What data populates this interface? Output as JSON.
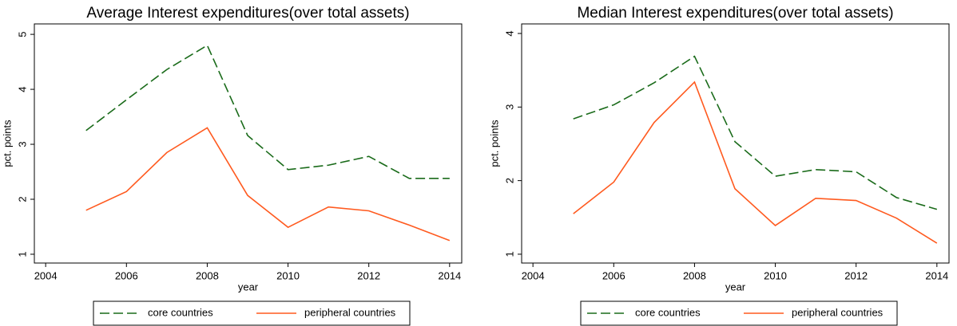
{
  "chart_data": [
    {
      "type": "line",
      "title": "Average Interest expenditures(over total assets)",
      "x_label": "year",
      "y_label": "pct. points",
      "x": [
        2005,
        2006,
        2007,
        2008,
        2009,
        2010,
        2011,
        2012,
        2013,
        2014
      ],
      "series": [
        {
          "name": "core countries",
          "color": "#1a6b1a",
          "dashed": true,
          "values": [
            3.25,
            3.81,
            4.36,
            4.8,
            3.16,
            2.54,
            2.62,
            2.78,
            2.38,
            2.38
          ]
        },
        {
          "name": "peripheral countries",
          "color": "#ff5a1f",
          "dashed": false,
          "values": [
            1.8,
            2.14,
            2.85,
            3.3,
            2.07,
            1.49,
            1.86,
            1.79,
            1.53,
            1.25
          ]
        }
      ],
      "xlim": [
        2003.72,
        2014.3
      ],
      "xticks": [
        2004,
        2006,
        2008,
        2010,
        2012,
        2014
      ],
      "ylim": [
        0.84,
        5.19
      ],
      "yticks": [
        1,
        2,
        3,
        4,
        5
      ],
      "grid": false,
      "legend": "bottom"
    },
    {
      "type": "line",
      "title": "Median Interest expenditures(over total assets)",
      "x_label": "year",
      "y_label": "pct. points",
      "x": [
        2005,
        2006,
        2007,
        2008,
        2009,
        2010,
        2011,
        2012,
        2013,
        2014
      ],
      "series": [
        {
          "name": "core countries",
          "color": "#1a6b1a",
          "dashed": true,
          "values": [
            2.84,
            3.03,
            3.33,
            3.69,
            2.53,
            2.06,
            2.15,
            2.12,
            1.77,
            1.61
          ]
        },
        {
          "name": "peripheral countries",
          "color": "#ff5a1f",
          "dashed": false,
          "values": [
            1.55,
            1.98,
            2.79,
            3.34,
            1.89,
            1.39,
            1.76,
            1.73,
            1.49,
            1.15
          ]
        }
      ],
      "xlim": [
        2003.72,
        2014.3
      ],
      "xticks": [
        2004,
        2006,
        2008,
        2010,
        2012,
        2014
      ],
      "ylim": [
        0.88,
        4.13
      ],
      "yticks": [
        1,
        2,
        3,
        4
      ],
      "grid": false,
      "legend": "bottom"
    }
  ]
}
